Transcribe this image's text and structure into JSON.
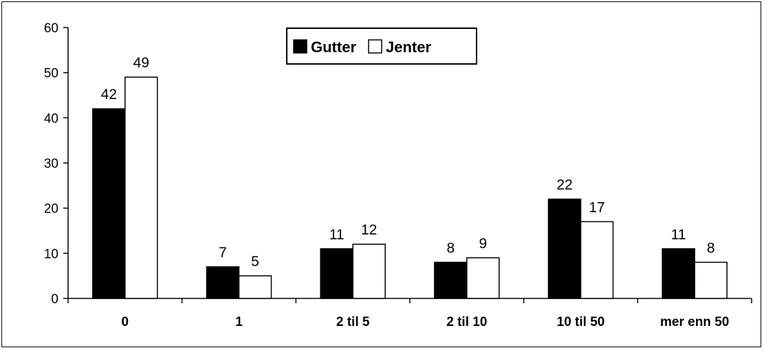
{
  "chart_data": {
    "type": "bar",
    "categories": [
      "0",
      "1",
      "2 til 5",
      "2 til 10",
      "10 til 50",
      "mer enn 50"
    ],
    "series": [
      {
        "name": "Gutter",
        "values": [
          42,
          7,
          11,
          8,
          22,
          11
        ],
        "color": "#000000"
      },
      {
        "name": "Jenter",
        "values": [
          49,
          5,
          12,
          9,
          17,
          8
        ],
        "color": "#ffffff"
      }
    ],
    "ylim": [
      0,
      60
    ],
    "yticks": [
      0,
      10,
      20,
      30,
      40,
      50,
      60
    ],
    "grid": false,
    "data_labels": true,
    "legend": {
      "position": "top-center",
      "boxed": true
    }
  }
}
